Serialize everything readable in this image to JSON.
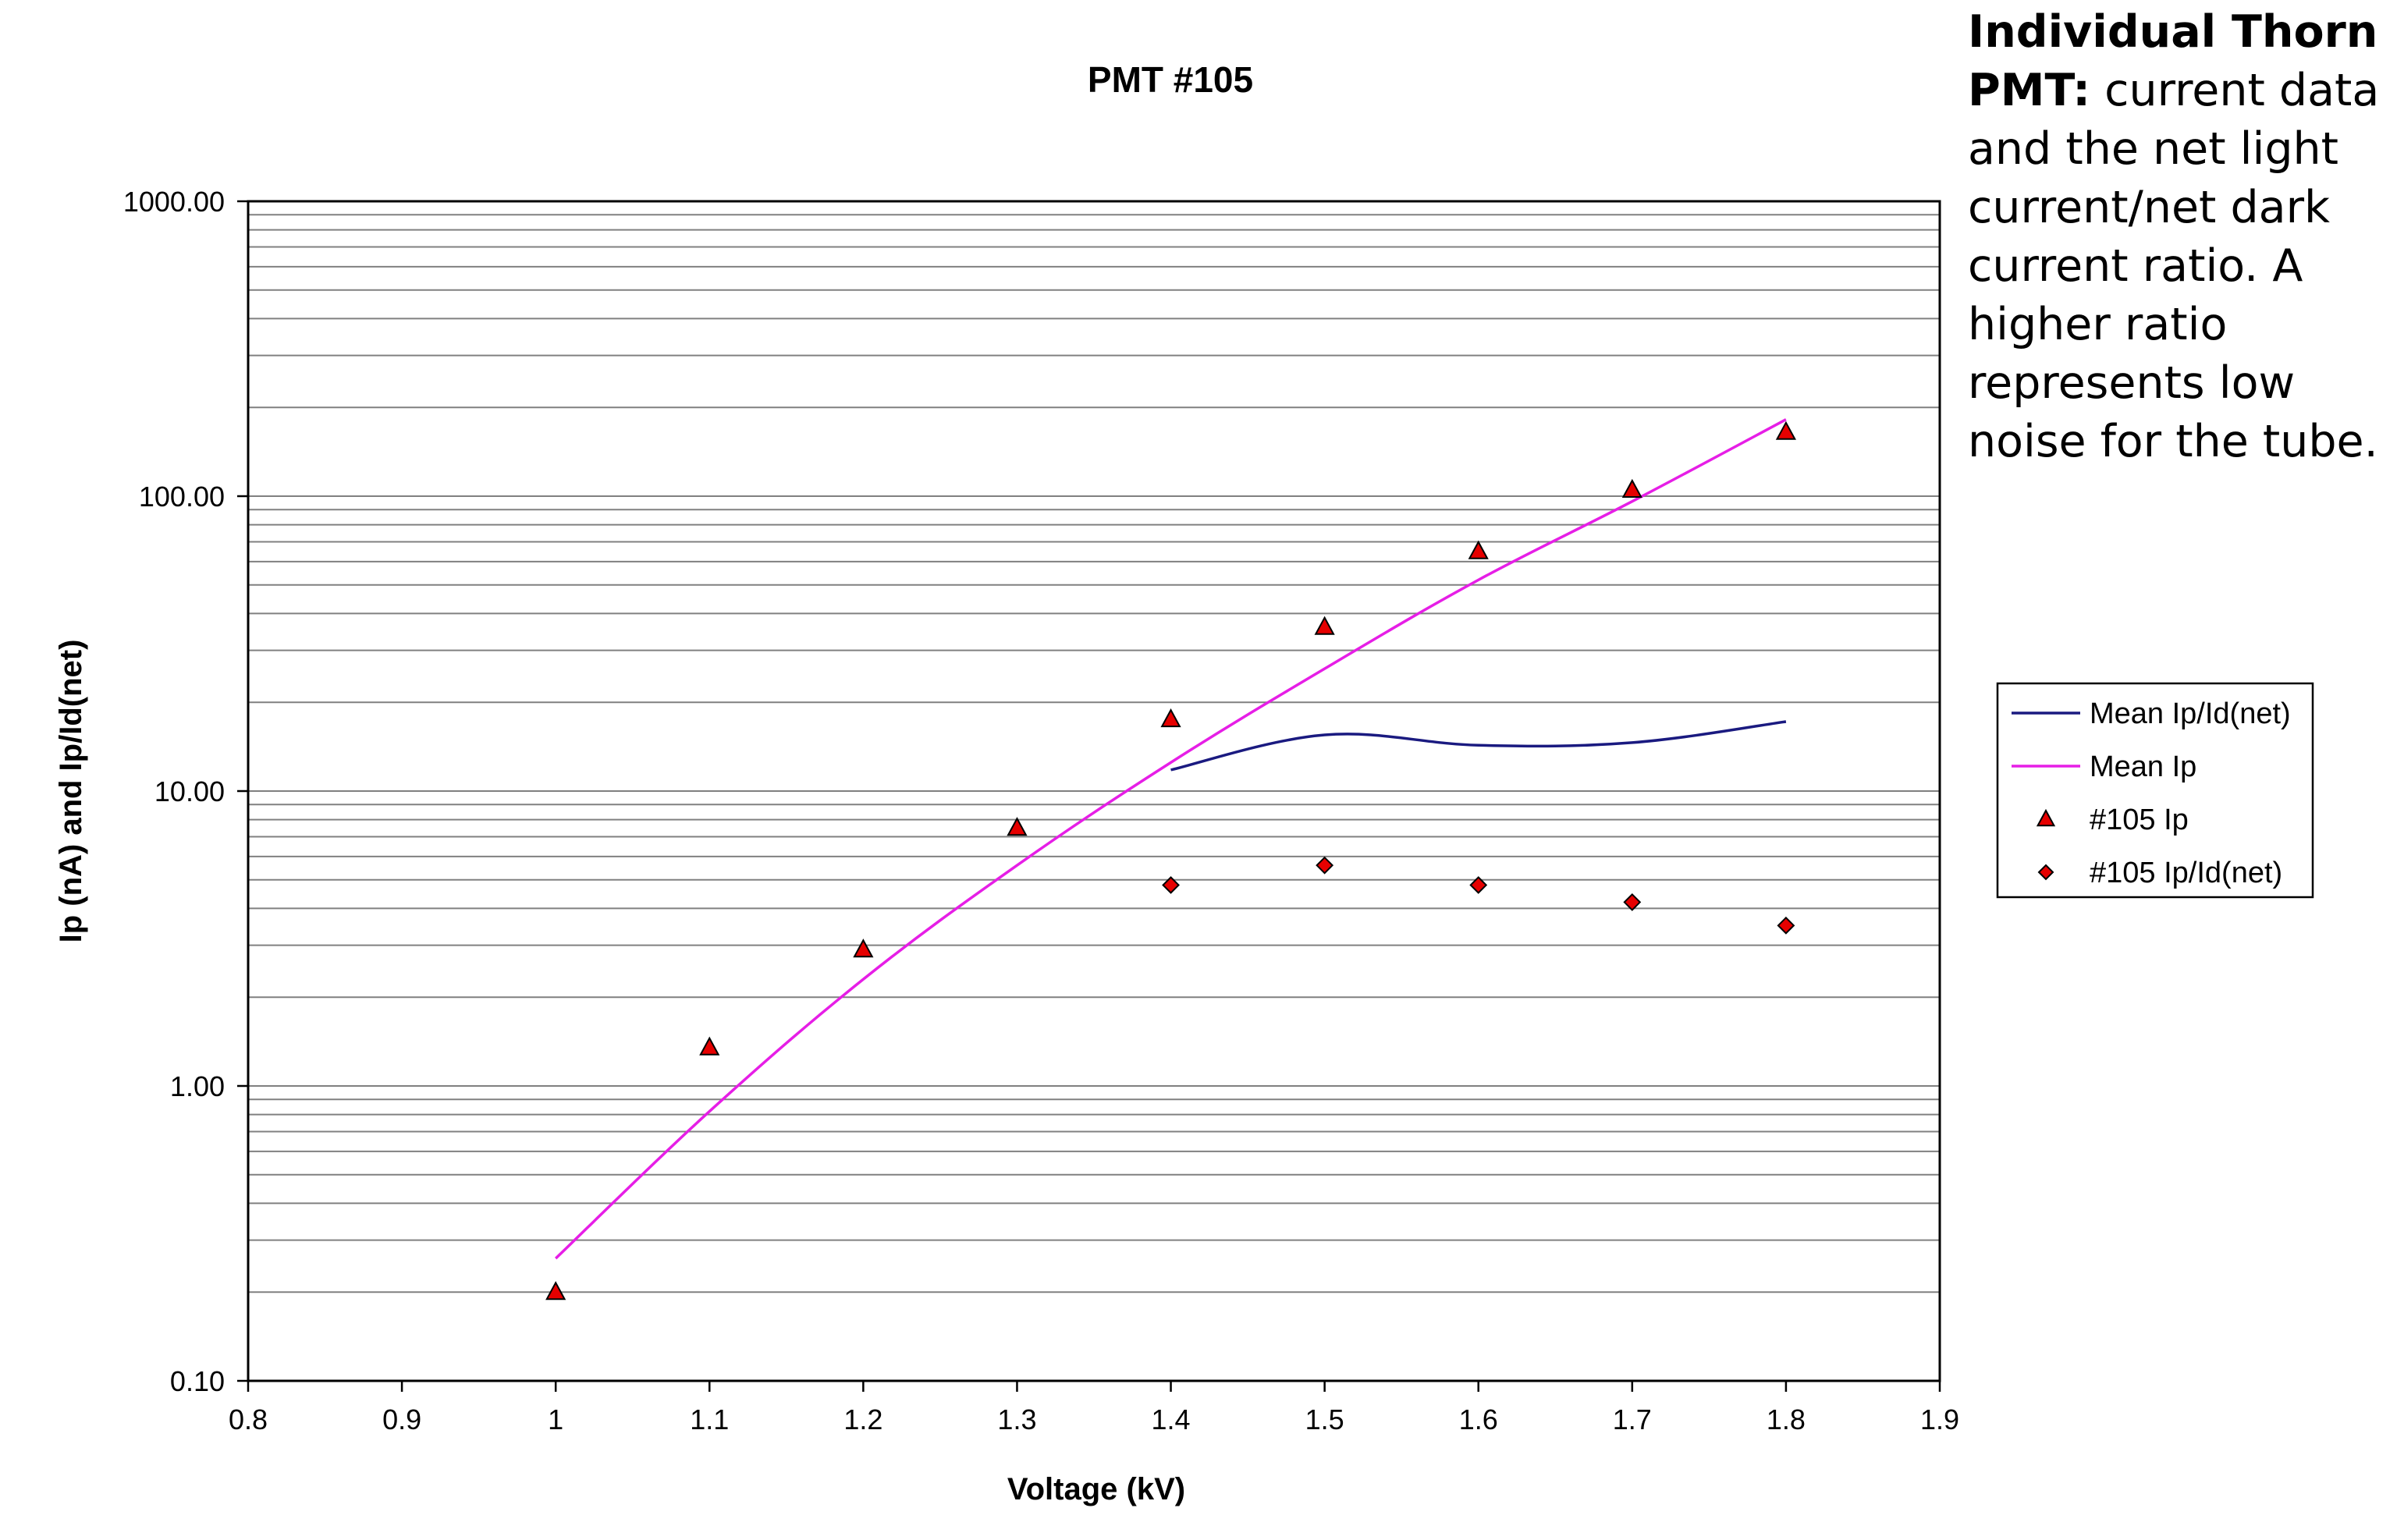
{
  "caption": {
    "bold": "Individual Thorn PMT:",
    "text": " current data and the net light current/net dark current ratio. A higher ratio represents low noise for the tube."
  },
  "chart_data": {
    "type": "scatter",
    "title": "PMT #105",
    "xlabel": "Voltage (kV)",
    "ylabel": "Ip (nA) and Ip/Id(net)",
    "xlim": [
      0.8,
      1.9
    ],
    "ylim": [
      0.1,
      1000
    ],
    "yscale": "log",
    "grid": true,
    "legend_position": "right",
    "x_ticks": [
      "0.8",
      "0.9",
      "1",
      "1.1",
      "1.2",
      "1.3",
      "1.4",
      "1.5",
      "1.6",
      "1.7",
      "1.8",
      "1.9"
    ],
    "y_ticks": [
      "0.10",
      "1.00",
      "10.00",
      "100.00",
      "1000.00"
    ],
    "series": [
      {
        "name": "Mean Ip/Id(net)",
        "kind": "line",
        "color": "#1a1a80",
        "x": [
          1.4,
          1.5,
          1.6,
          1.7,
          1.8
        ],
        "y": [
          11.8,
          15.5,
          14.3,
          14.6,
          17.2
        ]
      },
      {
        "name": "Mean Ip",
        "kind": "line",
        "color": "#e61ee6",
        "x": [
          1.0,
          1.1,
          1.2,
          1.3,
          1.4,
          1.5,
          1.6,
          1.7,
          1.8
        ],
        "y": [
          0.26,
          0.82,
          2.3,
          5.6,
          12.5,
          26,
          52,
          96,
          182
        ]
      },
      {
        "name": "#105 Ip",
        "kind": "marker",
        "marker": "triangle",
        "color": "#e60000",
        "x": [
          1.0,
          1.1,
          1.2,
          1.3,
          1.4,
          1.5,
          1.6,
          1.7,
          1.8
        ],
        "y": [
          0.2,
          1.35,
          2.9,
          7.5,
          17.5,
          36,
          65,
          105,
          165
        ]
      },
      {
        "name": "#105 Ip/Id(net)",
        "kind": "marker",
        "marker": "diamond",
        "color": "#e60000",
        "x": [
          1.4,
          1.5,
          1.6,
          1.7,
          1.8
        ],
        "y": [
          4.8,
          5.6,
          4.8,
          4.2,
          3.5
        ]
      }
    ]
  }
}
